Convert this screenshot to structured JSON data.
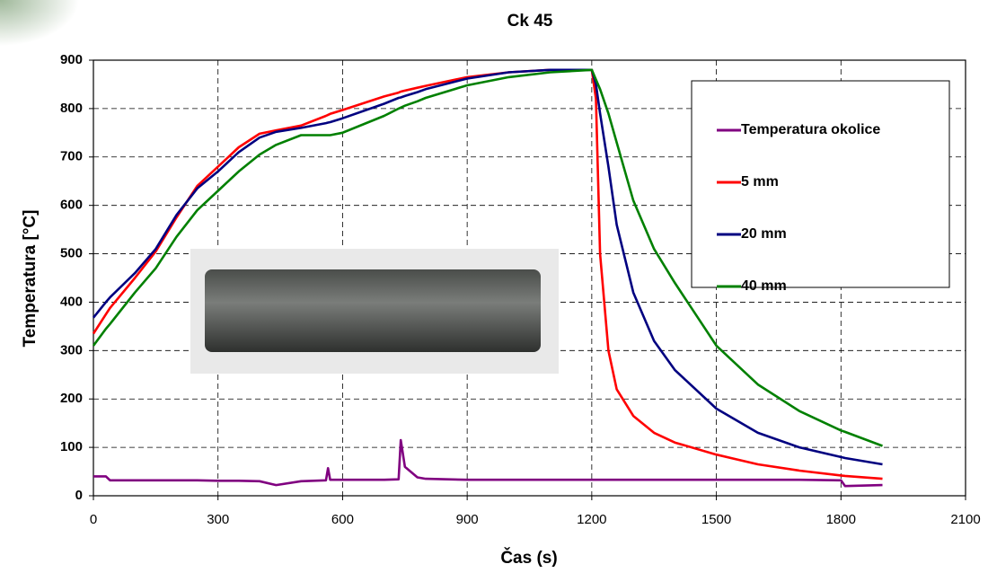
{
  "chart_data": {
    "type": "line",
    "title": "Ck 45",
    "xlabel": "Čas (s)",
    "ylabel": "Temperatura [°C]",
    "x": [
      0,
      30,
      40,
      100,
      150,
      200,
      250,
      300,
      350,
      400,
      440,
      500,
      560,
      565,
      570,
      600,
      700,
      735,
      740,
      750,
      780,
      800,
      900,
      1000,
      1100,
      1200,
      1210,
      1220,
      1240,
      1260,
      1300,
      1350,
      1400,
      1500,
      1600,
      1700,
      1800,
      1810,
      1900
    ],
    "series": [
      {
        "name": "Temperatura okolice",
        "color": "#800080",
        "values": [
          40,
          40,
          32,
          32,
          32,
          32,
          32,
          31,
          31,
          30,
          22,
          30,
          32,
          57,
          33,
          33,
          33,
          34,
          115,
          60,
          38,
          35,
          33,
          33,
          33,
          33,
          33,
          33,
          33,
          33,
          33,
          33,
          33,
          33,
          33,
          33,
          32,
          20,
          22
        ]
      },
      {
        "name": "5 mm",
        "color": "#ff0000",
        "values": [
          335,
          375,
          388,
          450,
          505,
          575,
          640,
          680,
          720,
          748,
          755,
          765,
          785,
          787,
          789,
          797,
          825,
          833,
          835,
          837,
          843,
          847,
          865,
          875,
          880,
          880,
          820,
          500,
          300,
          220,
          165,
          130,
          110,
          85,
          65,
          52,
          42,
          41,
          35
        ]
      },
      {
        "name": "20 mm",
        "color": "#000080",
        "values": [
          368,
          400,
          410,
          460,
          510,
          580,
          635,
          670,
          710,
          740,
          752,
          760,
          770,
          771,
          772,
          780,
          810,
          822,
          823,
          826,
          834,
          840,
          862,
          875,
          880,
          880,
          850,
          790,
          680,
          560,
          420,
          320,
          260,
          180,
          130,
          100,
          80,
          78,
          65
        ]
      },
      {
        "name": "40 mm",
        "color": "#008000",
        "values": [
          310,
          345,
          355,
          420,
          470,
          535,
          590,
          630,
          670,
          705,
          725,
          745,
          745,
          745,
          745,
          750,
          785,
          800,
          802,
          806,
          815,
          822,
          848,
          865,
          875,
          880,
          860,
          840,
          790,
          730,
          610,
          510,
          440,
          310,
          230,
          175,
          135,
          132,
          103
        ]
      }
    ],
    "xlim": [
      0,
      2100
    ],
    "xticks": [
      0,
      300,
      600,
      900,
      1200,
      1500,
      1800,
      2100
    ],
    "ylim": [
      0,
      900
    ],
    "yticks": [
      0,
      100,
      200,
      300,
      400,
      500,
      600,
      700,
      800,
      900
    ],
    "grid": true,
    "legend": "upper right"
  }
}
